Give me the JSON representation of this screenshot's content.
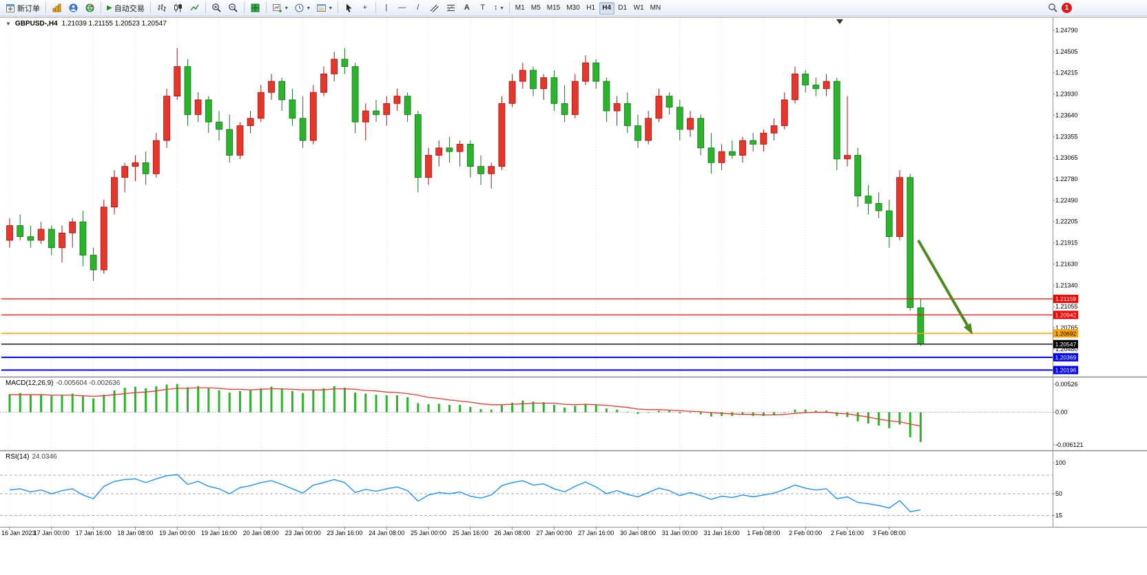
{
  "toolbar": {
    "new_order_label": "新订单",
    "auto_trading_label": "自动交易",
    "timeframes": [
      "M1",
      "M5",
      "M15",
      "M30",
      "H1",
      "H4",
      "D1",
      "W1",
      "MN"
    ],
    "active_timeframe": "H4",
    "notification_count": "1"
  },
  "icons": {
    "chart_menu": "▼",
    "play": "▶",
    "dropdown": "▾",
    "vline": "|",
    "hline": "—",
    "trendline": "/",
    "crosshair": "+",
    "text_tool": "A",
    "label_tool": "T",
    "arrows_tool": "↕"
  },
  "chart": {
    "title_symbol": "GBPUSD-,H4",
    "title_quote": "1.21039 1.21155 1.20523 1.20547"
  },
  "chart_data": {
    "type": "candlestick",
    "symbol": "GBPUSD-",
    "period": "H4",
    "up_color": "#e8362a",
    "down_color": "#2bb32b",
    "price_axis_labels": [
      "1.24790",
      "1.24505",
      "1.24215",
      "1.23930",
      "1.23640",
      "1.23355",
      "1.23065",
      "1.22780",
      "1.22490",
      "1.22205",
      "1.21915",
      "1.21630",
      "1.21340",
      "1.21055",
      "1.20765",
      "1.20480"
    ],
    "time_labels": [
      "16 Jan 2023",
      "17 Jan 00:00",
      "17 Jan 16:00",
      "18 Jan 08:00",
      "19 Jan 00:00",
      "19 Jan 16:00",
      "20 Jan 08:00",
      "23 Jan 00:00",
      "23 Jan 16:00",
      "24 Jan 08:00",
      "25 Jan 00:00",
      "25 Jan 16:00",
      "26 Jan 08:00",
      "27 Jan 00:00",
      "27 Jan 16:00",
      "30 Jan 08:00",
      "31 Jan 00:00",
      "31 Jan 16:00",
      "1 Feb 08:00",
      "2 Feb 00:00",
      "2 Feb 16:00",
      "3 Feb 08:00"
    ],
    "candles": [
      [
        1.2195,
        1.2225,
        1.2185,
        1.2215
      ],
      [
        1.2215,
        1.223,
        1.2195,
        1.22
      ],
      [
        1.22,
        1.2215,
        1.2185,
        1.2195
      ],
      [
        1.2195,
        1.222,
        1.219,
        1.221
      ],
      [
        1.221,
        1.2215,
        1.2175,
        1.2185
      ],
      [
        1.2185,
        1.2215,
        1.2165,
        1.2205
      ],
      [
        1.2205,
        1.2225,
        1.2185,
        1.222
      ],
      [
        1.222,
        1.2235,
        1.216,
        1.2175
      ],
      [
        1.2175,
        1.2185,
        1.214,
        1.2155
      ],
      [
        1.2155,
        1.225,
        1.215,
        1.224
      ],
      [
        1.224,
        1.229,
        1.223,
        1.228
      ],
      [
        1.228,
        1.23,
        1.226,
        1.2295
      ],
      [
        1.2295,
        1.231,
        1.2275,
        1.23
      ],
      [
        1.23,
        1.2315,
        1.227,
        1.2285
      ],
      [
        1.2285,
        1.234,
        1.228,
        1.233
      ],
      [
        1.233,
        1.24,
        1.232,
        1.239
      ],
      [
        1.239,
        1.2455,
        1.2385,
        1.243
      ],
      [
        1.243,
        1.244,
        1.235,
        1.2365
      ],
      [
        1.2365,
        1.2395,
        1.2355,
        1.2385
      ],
      [
        1.2385,
        1.239,
        1.234,
        1.2355
      ],
      [
        1.2355,
        1.237,
        1.233,
        1.2345
      ],
      [
        1.2345,
        1.2365,
        1.23,
        1.231
      ],
      [
        1.231,
        1.2355,
        1.2305,
        1.235
      ],
      [
        1.235,
        1.237,
        1.234,
        1.236
      ],
      [
        1.236,
        1.2405,
        1.2355,
        1.2395
      ],
      [
        1.2395,
        1.242,
        1.2385,
        1.241
      ],
      [
        1.241,
        1.2415,
        1.237,
        1.2385
      ],
      [
        1.2385,
        1.24,
        1.235,
        1.236
      ],
      [
        1.236,
        1.239,
        1.232,
        1.233
      ],
      [
        1.233,
        1.2405,
        1.2325,
        1.2395
      ],
      [
        1.2395,
        1.243,
        1.239,
        1.242
      ],
      [
        1.242,
        1.245,
        1.241,
        1.244
      ],
      [
        1.244,
        1.2455,
        1.242,
        1.243
      ],
      [
        1.243,
        1.2435,
        1.234,
        1.2355
      ],
      [
        1.2355,
        1.238,
        1.233,
        1.237
      ],
      [
        1.237,
        1.2385,
        1.2355,
        1.2365
      ],
      [
        1.2365,
        1.239,
        1.235,
        1.238
      ],
      [
        1.238,
        1.24,
        1.237,
        1.239
      ],
      [
        1.239,
        1.2395,
        1.2355,
        1.2365
      ],
      [
        1.2365,
        1.237,
        1.226,
        1.228
      ],
      [
        1.228,
        1.232,
        1.227,
        1.231
      ],
      [
        1.231,
        1.233,
        1.2295,
        1.232
      ],
      [
        1.232,
        1.2335,
        1.23,
        1.2315
      ],
      [
        1.2315,
        1.233,
        1.2295,
        1.2325
      ],
      [
        1.2325,
        1.233,
        1.228,
        1.2295
      ],
      [
        1.2295,
        1.231,
        1.227,
        1.2285
      ],
      [
        1.2285,
        1.23,
        1.2265,
        1.2295
      ],
      [
        1.2295,
        1.239,
        1.229,
        1.238
      ],
      [
        1.238,
        1.242,
        1.2375,
        1.241
      ],
      [
        1.241,
        1.2435,
        1.24,
        1.2425
      ],
      [
        1.2425,
        1.243,
        1.239,
        1.24
      ],
      [
        1.24,
        1.242,
        1.2385,
        1.2415
      ],
      [
        1.2415,
        1.2425,
        1.237,
        1.238
      ],
      [
        1.238,
        1.2405,
        1.2355,
        1.2365
      ],
      [
        1.2365,
        1.242,
        1.236,
        1.241
      ],
      [
        1.241,
        1.2445,
        1.2405,
        1.2435
      ],
      [
        1.2435,
        1.244,
        1.24,
        1.241
      ],
      [
        1.241,
        1.2415,
        1.2355,
        1.237
      ],
      [
        1.237,
        1.239,
        1.235,
        1.238
      ],
      [
        1.238,
        1.2395,
        1.234,
        1.235
      ],
      [
        1.235,
        1.2365,
        1.232,
        1.233
      ],
      [
        1.233,
        1.237,
        1.2325,
        1.236
      ],
      [
        1.236,
        1.24,
        1.2355,
        1.239
      ],
      [
        1.239,
        1.2395,
        1.2365,
        1.2375
      ],
      [
        1.2375,
        1.2385,
        1.233,
        1.2345
      ],
      [
        1.2345,
        1.237,
        1.2335,
        1.236
      ],
      [
        1.236,
        1.2365,
        1.231,
        1.232
      ],
      [
        1.232,
        1.234,
        1.2285,
        1.23
      ],
      [
        1.23,
        1.2325,
        1.229,
        1.2315
      ],
      [
        1.2315,
        1.233,
        1.2305,
        1.231
      ],
      [
        1.231,
        1.2335,
        1.23,
        1.233
      ],
      [
        1.233,
        1.234,
        1.2315,
        1.2325
      ],
      [
        1.2325,
        1.2345,
        1.2315,
        1.234
      ],
      [
        1.234,
        1.236,
        1.233,
        1.235
      ],
      [
        1.235,
        1.2395,
        1.2345,
        1.2385
      ],
      [
        1.2385,
        1.243,
        1.238,
        1.242
      ],
      [
        1.242,
        1.2425,
        1.2395,
        1.2405
      ],
      [
        1.2405,
        1.2415,
        1.239,
        1.24
      ],
      [
        1.24,
        1.242,
        1.239,
        1.241
      ],
      [
        1.241,
        1.2415,
        1.229,
        1.2305
      ],
      [
        1.2305,
        1.239,
        1.2295,
        1.231
      ],
      [
        1.231,
        1.232,
        1.224,
        1.2255
      ],
      [
        1.2255,
        1.227,
        1.223,
        1.2245
      ],
      [
        1.2245,
        1.226,
        1.2225,
        1.2235
      ],
      [
        1.2235,
        1.225,
        1.2185,
        1.22
      ],
      [
        1.22,
        1.229,
        1.2195,
        1.228
      ],
      [
        1.228,
        1.2285,
        1.21,
        1.2104
      ],
      [
        1.21039,
        1.21155,
        1.20523,
        1.20547
      ]
    ],
    "levels": [
      {
        "label": "1.21159",
        "price": 1.21159,
        "color": "#ff0000",
        "text": "#ffffff",
        "kind": "resistance-line"
      },
      {
        "label": "1.20942",
        "price": 1.20942,
        "color": "#ff0000",
        "text": "#ffffff",
        "kind": "resistance-line"
      },
      {
        "label": "1.20692",
        "price": 1.20692,
        "color": "#ffa500",
        "text": "#000000",
        "kind": "support-line"
      },
      {
        "label": "1.20547",
        "price": 1.20547,
        "color": "#000000",
        "text": "#ffffff",
        "kind": "current-price"
      },
      {
        "label": "1.20369",
        "price": 1.20369,
        "color": "#0000ff",
        "text": "#ffffff",
        "kind": "support-line"
      },
      {
        "label": "1.20196",
        "price": 1.20196,
        "color": "#0000ff",
        "text": "#ffffff",
        "kind": "support-line"
      }
    ],
    "arrow": {
      "from": [
        1333,
        349
      ],
      "to": [
        1412,
        486
      ],
      "color": "#4a8a1f"
    },
    "macd": {
      "label": "MACD(12,26,9)",
      "values_label": "-0.005604 -0.002636",
      "axis_labels": [
        "0.00526",
        "0.00",
        "-0.006121"
      ],
      "axis_max": 0.00526,
      "axis_min": -0.006121,
      "histogram_color": "#2bb32b",
      "signal_color": "#e23b2e",
      "histogram": [
        0.0034,
        0.0036,
        0.0033,
        0.0034,
        0.0031,
        0.0033,
        0.0035,
        0.003,
        0.0026,
        0.0033,
        0.0041,
        0.0046,
        0.0048,
        0.0045,
        0.0049,
        0.0052,
        0.0053,
        0.0047,
        0.0049,
        0.0045,
        0.0041,
        0.0037,
        0.004,
        0.0042,
        0.0045,
        0.0048,
        0.0045,
        0.004,
        0.0036,
        0.0041,
        0.0045,
        0.0049,
        0.0046,
        0.0037,
        0.0035,
        0.0033,
        0.0032,
        0.0032,
        0.0028,
        0.0017,
        0.0015,
        0.0016,
        0.0014,
        0.0014,
        0.001,
        0.0006,
        0.0005,
        0.0013,
        0.0018,
        0.0022,
        0.002,
        0.0019,
        0.0014,
        0.0009,
        0.0012,
        0.0016,
        0.0013,
        0.0007,
        0.0005,
        0.0001,
        -0.0003,
        -0.0001,
        0.0003,
        0.0003,
        -0.0002,
        -0.0001,
        -0.0004,
        -0.0008,
        -0.0007,
        -0.0007,
        -0.0005,
        -0.0007,
        -0.0007,
        -0.0005,
        -0.0001,
        0.0005,
        0.0005,
        0.0003,
        0.0003,
        -0.0007,
        -0.0009,
        -0.0017,
        -0.0021,
        -0.0025,
        -0.003,
        -0.0023,
        -0.0047,
        -0.0056
      ],
      "signal": [
        0.0033,
        0.0033,
        0.0033,
        0.0033,
        0.0032,
        0.0032,
        0.0032,
        0.0031,
        0.003,
        0.0031,
        0.0033,
        0.0035,
        0.0037,
        0.0038,
        0.004,
        0.0043,
        0.0045,
        0.0045,
        0.0046,
        0.0046,
        0.0045,
        0.0043,
        0.0043,
        0.0042,
        0.0043,
        0.0044,
        0.0044,
        0.0043,
        0.0042,
        0.0042,
        0.0042,
        0.0044,
        0.0044,
        0.0043,
        0.0041,
        0.004,
        0.0038,
        0.0037,
        0.0035,
        0.0032,
        0.0028,
        0.0026,
        0.0023,
        0.0021,
        0.0019,
        0.0016,
        0.0014,
        0.0014,
        0.0015,
        0.0016,
        0.0017,
        0.0017,
        0.0017,
        0.0015,
        0.0014,
        0.0015,
        0.0014,
        0.0013,
        0.0011,
        0.0009,
        0.0006,
        0.0005,
        0.0005,
        0.0004,
        0.0003,
        0.0002,
        0.0001,
        -0.0001,
        -0.0002,
        -0.0003,
        -0.0004,
        -0.0004,
        -0.0005,
        -0.0005,
        -0.0004,
        -0.0002,
        -0.0001,
        0.0,
        0.0,
        -0.0002,
        -0.0003,
        -0.0006,
        -0.0009,
        -0.0013,
        -0.0016,
        -0.0018,
        -0.0022,
        -0.0026
      ]
    },
    "rsi": {
      "label": "RSI(14)",
      "value_label": "24.0346",
      "line_color": "#1e90ff",
      "range": [
        0,
        100
      ],
      "axis_labels": [
        "100",
        "50",
        "15"
      ],
      "levels": [
        80,
        50,
        15
      ],
      "values": [
        56,
        58,
        53,
        56,
        50,
        55,
        58,
        48,
        42,
        62,
        70,
        73,
        74,
        68,
        74,
        79,
        81,
        65,
        70,
        62,
        58,
        50,
        60,
        63,
        68,
        71,
        65,
        58,
        51,
        64,
        68,
        73,
        68,
        52,
        57,
        54,
        58,
        61,
        55,
        38,
        48,
        52,
        50,
        53,
        46,
        43,
        48,
        63,
        68,
        71,
        64,
        66,
        58,
        53,
        62,
        69,
        61,
        50,
        55,
        49,
        45,
        52,
        59,
        55,
        47,
        52,
        47,
        41,
        46,
        44,
        48,
        45,
        48,
        51,
        57,
        64,
        59,
        56,
        58,
        42,
        45,
        36,
        34,
        31,
        27,
        39,
        21,
        24
      ]
    }
  }
}
